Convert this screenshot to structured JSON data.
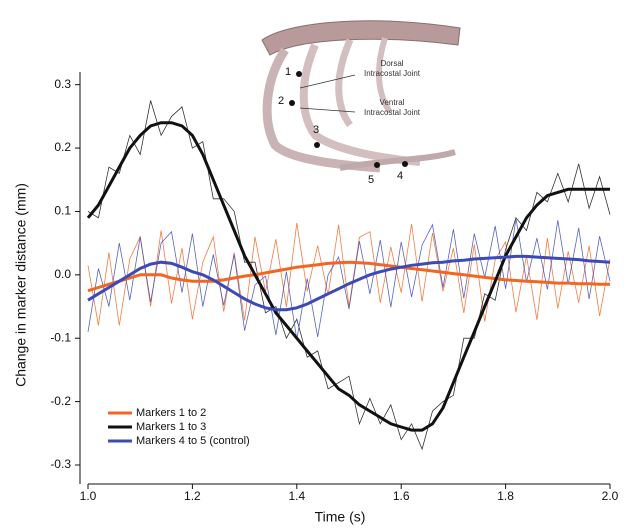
{
  "chart_data": {
    "type": "line",
    "xlabel": "Time (s)",
    "ylabel": "Change in marker distance (mm)",
    "xlim": [
      1.0,
      2.0
    ],
    "ylim": [
      -0.33,
      0.32
    ],
    "xticks": [
      {
        "value": 1.0,
        "label": "1.0"
      },
      1.2,
      1.4,
      1.6,
      1.8,
      {
        "value": 2.0,
        "label": "2.0"
      }
    ],
    "yticks": [
      -0.3,
      -0.2,
      -0.1,
      {
        "value": 0,
        "label": "0.0"
      },
      0.1,
      0.2,
      0.3
    ],
    "legend": "bottom-left",
    "x": [
      1.0,
      1.02,
      1.04,
      1.06,
      1.08,
      1.1,
      1.12,
      1.14,
      1.16,
      1.18,
      1.2,
      1.22,
      1.24,
      1.26,
      1.28,
      1.3,
      1.32,
      1.34,
      1.36,
      1.38,
      1.4,
      1.42,
      1.44,
      1.46,
      1.48,
      1.5,
      1.52,
      1.54,
      1.56,
      1.58,
      1.6,
      1.62,
      1.64,
      1.66,
      1.68,
      1.7,
      1.72,
      1.74,
      1.76,
      1.78,
      1.8,
      1.82,
      1.84,
      1.86,
      1.88,
      1.9,
      1.92,
      1.94,
      1.96,
      1.98,
      2.0
    ],
    "series": [
      {
        "name": "Markers 1 to 2",
        "color": "#f26522",
        "values": [
          -0.025,
          -0.02,
          -0.015,
          -0.01,
          -0.005,
          0.0,
          0.0,
          0.0,
          -0.005,
          -0.008,
          -0.01,
          -0.01,
          -0.01,
          -0.008,
          -0.005,
          -0.002,
          0.0,
          0.003,
          0.006,
          0.009,
          0.012,
          0.014,
          0.016,
          0.018,
          0.019,
          0.02,
          0.019,
          0.018,
          0.016,
          0.014,
          0.012,
          0.01,
          0.008,
          0.006,
          0.004,
          0.002,
          0.0,
          -0.002,
          -0.004,
          -0.006,
          -0.008,
          -0.009,
          -0.01,
          -0.011,
          -0.012,
          -0.013,
          -0.013,
          -0.014,
          -0.014,
          -0.015,
          -0.015
        ],
        "raw_values": [
          0.015,
          -0.08,
          0.035,
          -0.08,
          0.025,
          0.06,
          -0.05,
          0.07,
          -0.045,
          0.042,
          -0.07,
          0.02,
          0.06,
          -0.058,
          0.035,
          -0.072,
          0.06,
          -0.027,
          0.056,
          -0.051,
          0.082,
          -0.026,
          0.046,
          -0.032,
          0.079,
          -0.05,
          0.059,
          0.068,
          -0.044,
          0.044,
          -0.028,
          0.08,
          -0.042,
          0.066,
          -0.026,
          0.042,
          -0.06,
          0.048,
          -0.074,
          0.024,
          0.052,
          -0.059,
          0.03,
          -0.071,
          0.058,
          -0.053,
          0.037,
          -0.044,
          0.046,
          -0.065,
          0.025
        ]
      },
      {
        "name": "Markers 1 to 3",
        "color": "#111111",
        "values": [
          0.09,
          0.11,
          0.14,
          0.17,
          0.2,
          0.22,
          0.235,
          0.24,
          0.24,
          0.235,
          0.22,
          0.19,
          0.15,
          0.11,
          0.07,
          0.03,
          0.0,
          -0.03,
          -0.06,
          -0.08,
          -0.1,
          -0.12,
          -0.14,
          -0.16,
          -0.18,
          -0.19,
          -0.205,
          -0.215,
          -0.225,
          -0.235,
          -0.24,
          -0.245,
          -0.245,
          -0.235,
          -0.21,
          -0.17,
          -0.13,
          -0.09,
          -0.05,
          -0.01,
          0.03,
          0.06,
          0.09,
          0.11,
          0.125,
          0.13,
          0.135,
          0.135,
          0.135,
          0.135,
          0.135
        ],
        "raw_values": [
          0.1,
          0.09,
          0.17,
          0.16,
          0.22,
          0.19,
          0.275,
          0.22,
          0.25,
          0.265,
          0.2,
          0.21,
          0.12,
          0.12,
          0.1,
          0.02,
          0.02,
          -0.06,
          -0.05,
          -0.1,
          -0.07,
          -0.13,
          -0.12,
          -0.18,
          -0.17,
          -0.16,
          -0.235,
          -0.195,
          -0.235,
          -0.205,
          -0.26,
          -0.235,
          -0.275,
          -0.215,
          -0.2,
          -0.19,
          -0.1,
          -0.1,
          -0.03,
          -0.04,
          0.04,
          0.09,
          0.07,
          0.13,
          0.115,
          0.16,
          0.115,
          0.175,
          0.105,
          0.155,
          0.095
        ]
      },
      {
        "name": "Markers 4 to 5 (control)",
        "color": "#3b4ab5",
        "values": [
          -0.04,
          -0.03,
          -0.02,
          -0.01,
          0.0,
          0.01,
          0.017,
          0.02,
          0.018,
          0.012,
          0.005,
          0.0,
          -0.008,
          -0.018,
          -0.028,
          -0.038,
          -0.046,
          -0.052,
          -0.055,
          -0.055,
          -0.052,
          -0.046,
          -0.038,
          -0.03,
          -0.022,
          -0.014,
          -0.007,
          0.0,
          0.005,
          0.009,
          0.012,
          0.015,
          0.017,
          0.019,
          0.02,
          0.022,
          0.023,
          0.025,
          0.026,
          0.027,
          0.028,
          0.029,
          0.029,
          0.028,
          0.027,
          0.026,
          0.025,
          0.024,
          0.022,
          0.021,
          0.02
        ],
        "raw_values": [
          -0.09,
          0.01,
          -0.05,
          0.05,
          -0.04,
          0.06,
          -0.043,
          0.05,
          0.068,
          -0.028,
          0.065,
          -0.05,
          0.032,
          -0.048,
          0.032,
          -0.088,
          -0.016,
          -0.002,
          -0.095,
          0.005,
          -0.102,
          -0.006,
          -0.098,
          0.0,
          0.028,
          -0.054,
          0.053,
          -0.03,
          0.055,
          -0.051,
          0.052,
          -0.035,
          0.047,
          0.079,
          -0.02,
          0.072,
          -0.037,
          0.065,
          -0.004,
          0.077,
          -0.022,
          0.089,
          -0.011,
          0.058,
          -0.023,
          0.086,
          -0.015,
          0.074,
          -0.038,
          0.061,
          -0.01
        ]
      }
    ],
    "annotations": [
      "Dorsal",
      "Intracostal Joint",
      "Ventral",
      "Intracostal Joint"
    ],
    "marker_labels": [
      "1",
      "2",
      "3",
      "4",
      "5"
    ]
  }
}
